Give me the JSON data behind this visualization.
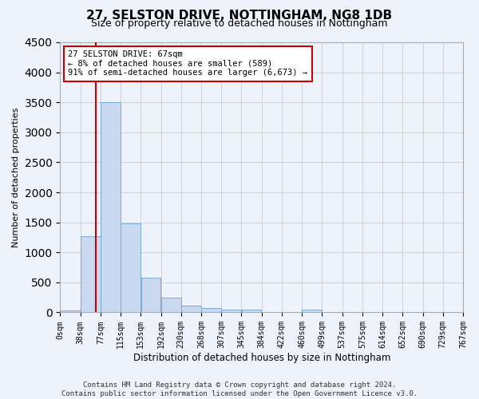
{
  "title": "27, SELSTON DRIVE, NOTTINGHAM, NG8 1DB",
  "subtitle": "Size of property relative to detached houses in Nottingham",
  "xlabel": "Distribution of detached houses by size in Nottingham",
  "ylabel": "Number of detached properties",
  "bin_labels": [
    "0sqm",
    "38sqm",
    "77sqm",
    "115sqm",
    "153sqm",
    "192sqm",
    "230sqm",
    "268sqm",
    "307sqm",
    "345sqm",
    "384sqm",
    "422sqm",
    "460sqm",
    "499sqm",
    "537sqm",
    "575sqm",
    "614sqm",
    "652sqm",
    "690sqm",
    "729sqm",
    "767sqm"
  ],
  "bar_values": [
    30,
    1270,
    3500,
    1480,
    575,
    240,
    110,
    75,
    50,
    50,
    0,
    0,
    50,
    0,
    0,
    0,
    0,
    0,
    0,
    0
  ],
  "bar_color": "#c9d9f0",
  "bar_edge_color": "#7aaad0",
  "property_line_x": 1.75,
  "property_line_label": "27 SELSTON DRIVE: 67sqm",
  "annotation_line1": "← 8% of detached houses are smaller (589)",
  "annotation_line2": "91% of semi-detached houses are larger (6,673) →",
  "annotation_box_facecolor": "#ffffff",
  "annotation_box_edgecolor": "#cc0000",
  "ylim": [
    0,
    4500
  ],
  "yticks": [
    0,
    500,
    1000,
    1500,
    2000,
    2500,
    3000,
    3500,
    4000,
    4500
  ],
  "vline_color": "#cc0000",
  "grid_color": "#cccccc",
  "footer_line1": "Contains HM Land Registry data © Crown copyright and database right 2024.",
  "footer_line2": "Contains public sector information licensed under the Open Government Licence v3.0.",
  "bg_color": "#eef2fa",
  "plot_bg_color": "#eef2fa",
  "title_fontsize": 11,
  "subtitle_fontsize": 9,
  "ylabel_fontsize": 8,
  "xlabel_fontsize": 8.5,
  "tick_fontsize": 7,
  "annotation_fontsize": 7.5,
  "footer_fontsize": 6.5
}
